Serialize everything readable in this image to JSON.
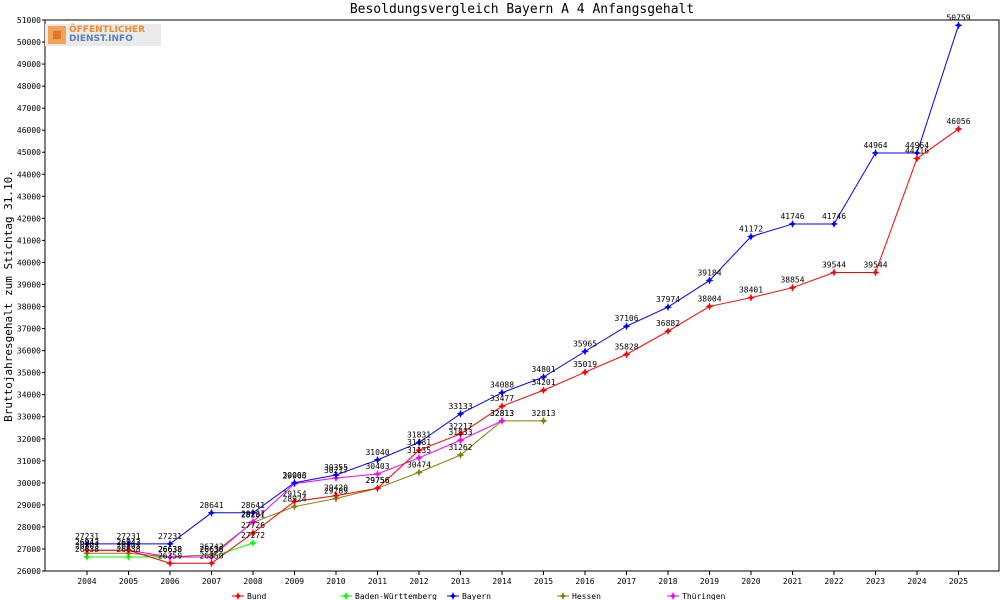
{
  "logo": {
    "line1": "ÖFFENTLICHER",
    "line2": "DIENST.INFO"
  },
  "chart_data": {
    "type": "line",
    "title": "Besoldungsvergleich Bayern A 4 Anfangsgehalt",
    "xlabel": "",
    "ylabel": "Bruttojahresgehalt zum Stichtag 31.10.",
    "ylim": [
      26000,
      51000
    ],
    "ytick_step": 1000,
    "categories": [
      "2004",
      "2005",
      "2006",
      "2007",
      "2008",
      "2009",
      "2010",
      "2011",
      "2012",
      "2013",
      "2014",
      "2015",
      "2016",
      "2017",
      "2018",
      "2019",
      "2020",
      "2021",
      "2022",
      "2023",
      "2024",
      "2025"
    ],
    "grid": false,
    "legend_position": "bottom",
    "series": [
      {
        "name": "Bund",
        "color": "#ff0000",
        "values": [
          26943,
          26943,
          26350,
          26350,
          27726,
          29154,
          29420,
          29756,
          31481,
          32217,
          33477,
          34201,
          35019,
          35828,
          36882,
          38004,
          38401,
          38854,
          39544,
          39544,
          44716,
          46056
        ]
      },
      {
        "name": "Baden-Württemberg",
        "color": "#00ff00",
        "values": [
          26638,
          26638,
          26638,
          26638,
          27272,
          null,
          null,
          null,
          null,
          null,
          null,
          null,
          null,
          null,
          null,
          null,
          null,
          null,
          null,
          null,
          null,
          null
        ]
      },
      {
        "name": "Bayern",
        "color": "#0000ff",
        "values": [
          27231,
          27231,
          27231,
          28641,
          28641,
          30003,
          30355,
          31040,
          31831,
          33133,
          34088,
          34801,
          35965,
          37106,
          37974,
          39184,
          41172,
          41746,
          41746,
          44964,
          44964,
          50759
        ]
      },
      {
        "name": "Hessen",
        "color": "#808000",
        "values": [
          26803,
          26803,
          26638,
          26743,
          28201,
          28924,
          29289,
          29756,
          30474,
          31262,
          32813,
          32813,
          null,
          null,
          null,
          null,
          null,
          null,
          null,
          null,
          null,
          null
        ]
      },
      {
        "name": "Thüringen",
        "color": "#ff00ff",
        "values": [
          26943,
          26943,
          26638,
          26638,
          28237,
          29966,
          30217,
          30403,
          31135,
          31933,
          32813,
          null,
          null,
          null,
          null,
          null,
          null,
          null,
          null,
          null,
          null,
          null
        ]
      }
    ]
  }
}
